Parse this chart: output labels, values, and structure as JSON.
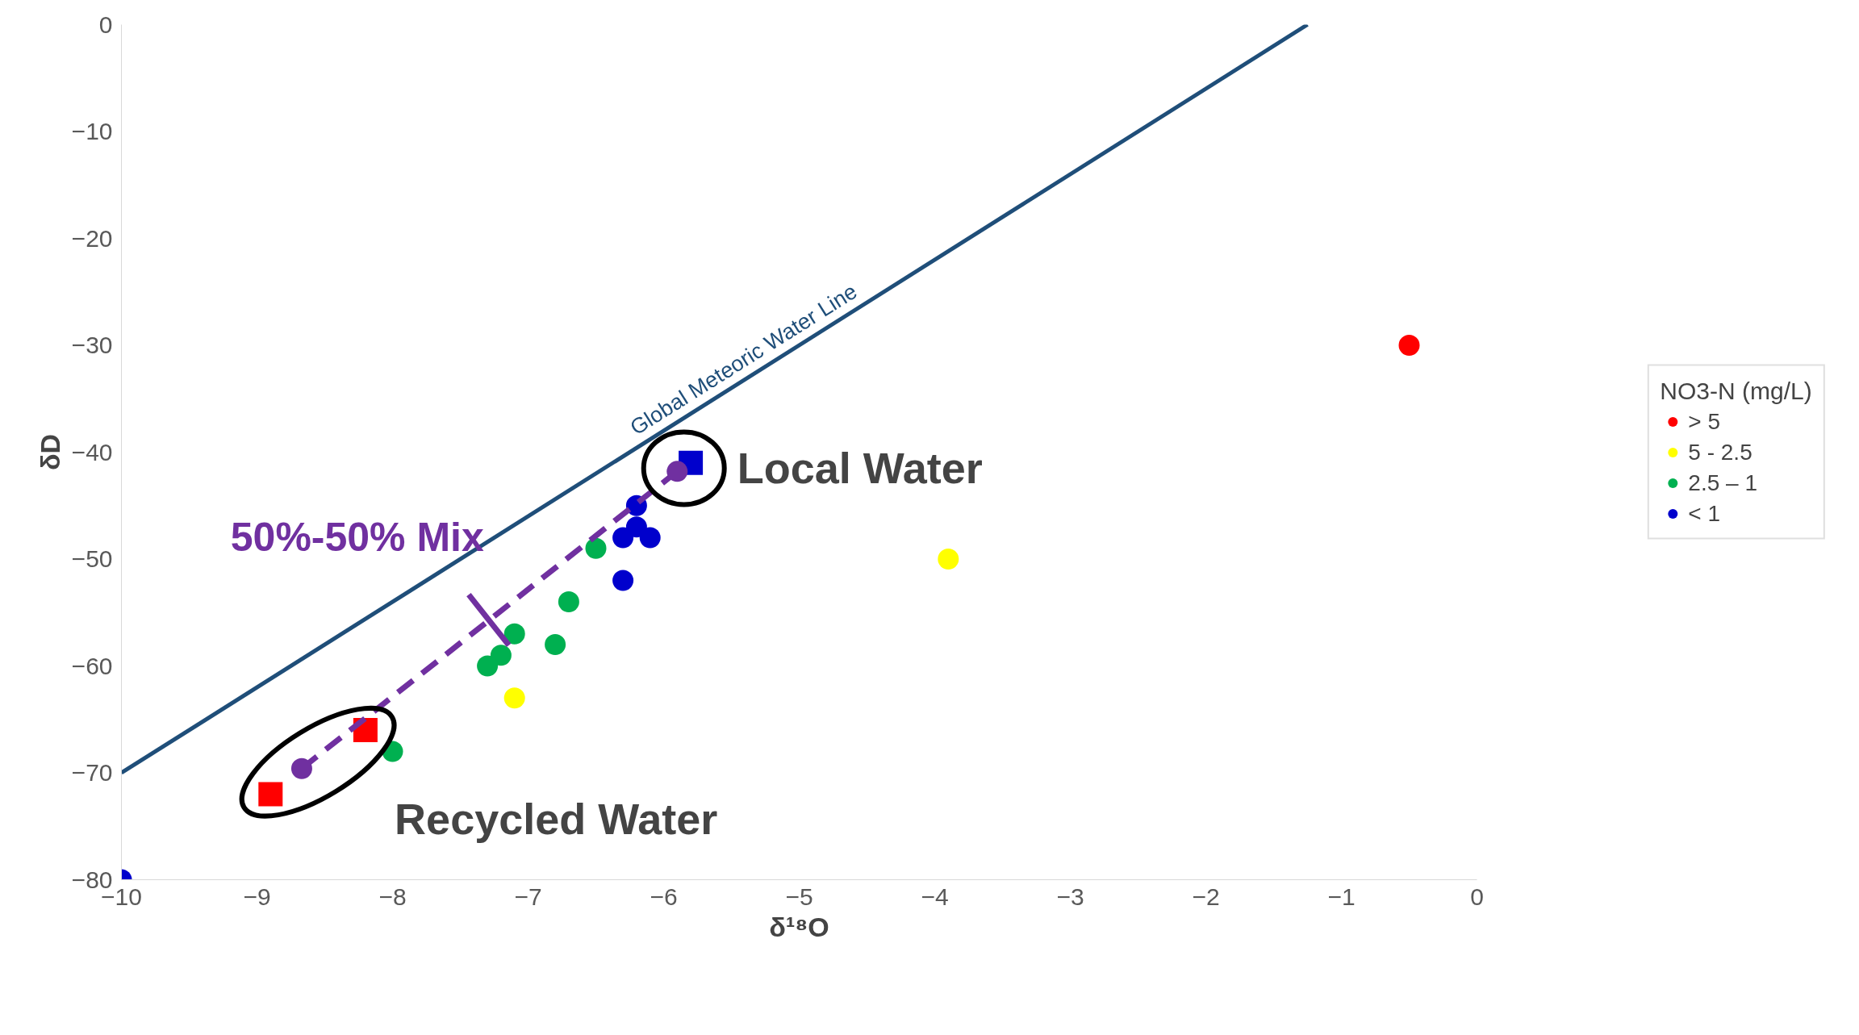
{
  "chart_data": {
    "type": "scatter",
    "xlabel": "δ¹⁸O",
    "ylabel": "δD",
    "legend_title": "NO3-N (mg/L)",
    "legend": "right",
    "grid": false,
    "xlim": [
      -10,
      0
    ],
    "ylim": [
      -80,
      0
    ],
    "xticks": [
      -10,
      -9,
      -8,
      -7,
      -6,
      -5,
      -4,
      -3,
      -2,
      -1,
      0
    ],
    "yticks": [
      -80,
      -70,
      -60,
      -50,
      -40,
      -30,
      -20,
      -10,
      0
    ],
    "series": [
      {
        "type": "line",
        "name": "Global Meteoric Water Line",
        "color": "#1f4e79",
        "x": [
          -10,
          -1.25
        ],
        "values": [
          -70,
          0
        ],
        "marker": "none",
        "line_style": "solid"
      },
      {
        "name": "> 5",
        "color": "#ff0000",
        "marker": "circle",
        "x": [
          -0.5
        ],
        "values": [
          -30
        ]
      },
      {
        "name": "5 - 2.5",
        "color": "#ffff00",
        "marker": "circle",
        "x": [
          -3.9,
          -7.1
        ],
        "values": [
          -50,
          -63
        ]
      },
      {
        "name": "2.5 – 1",
        "color": "#00b050",
        "marker": "circle",
        "x": [
          -6.5,
          -6.7,
          -7.1,
          -7.2,
          -7.3,
          -6.8,
          -8.0
        ],
        "values": [
          -49,
          -54,
          -57,
          -59,
          -60,
          -58,
          -68
        ]
      },
      {
        "name": "< 1",
        "color": "#0000cc",
        "marker": "circle",
        "x": [
          -6.2,
          -6.2,
          -6.3,
          -6.1,
          -6.3,
          -10
        ],
        "values": [
          -45,
          -47,
          -48,
          -48,
          -52,
          -80
        ]
      },
      {
        "color": "#ff0000",
        "marker": "square",
        "x": [
          -8.9,
          -8.2
        ],
        "values": [
          -72,
          -66
        ]
      },
      {
        "color": "#0000cc",
        "marker": "square",
        "x": [
          -5.8
        ],
        "values": [
          -41
        ]
      },
      {
        "type": "line",
        "color": "#7030a0",
        "marker": "circle",
        "line_style": "dashed",
        "x": [
          -8.67,
          -5.9
        ],
        "values": [
          -69.6,
          -41.8
        ]
      }
    ],
    "annotations": [
      {
        "text": "Local Water",
        "x": -5.85,
        "y": -41.5
      },
      {
        "text": "Recycled Water",
        "x": -8.55,
        "y": -69
      },
      {
        "text": "50%-50% Mix",
        "x": -7.29,
        "y": -55.7
      }
    ]
  }
}
